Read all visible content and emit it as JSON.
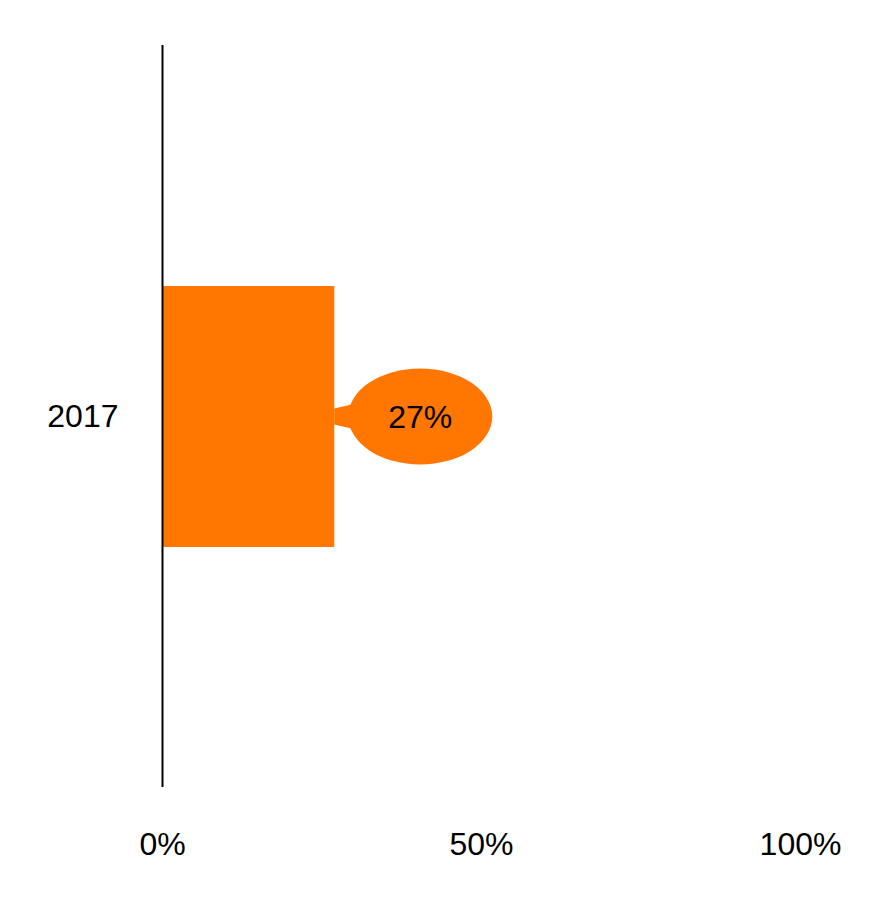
{
  "chart_data": {
    "type": "bar",
    "orientation": "horizontal",
    "categories": [
      "2017"
    ],
    "values": [
      27
    ],
    "value_labels": [
      "27%"
    ],
    "data_labels": true,
    "color": "#ff7700",
    "xlim": [
      0,
      100
    ],
    "xticks": [
      {
        "value": 0,
        "label": "0%"
      },
      {
        "value": 50,
        "label": "50%"
      },
      {
        "value": 100,
        "label": "100%"
      }
    ],
    "grid": false
  }
}
